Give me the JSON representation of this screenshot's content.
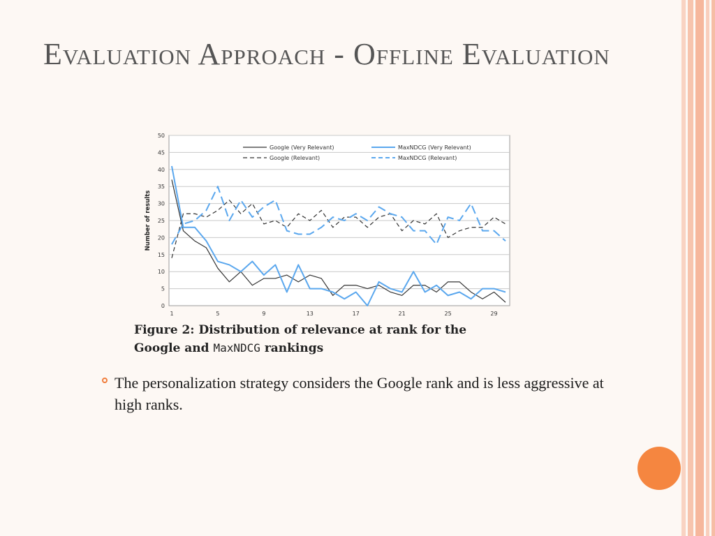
{
  "slide": {
    "title": "Evaluation Approach - Offline Evaluation",
    "bullet": "The personalization strategy considers the Google rank and is less aggressive at high ranks.",
    "caption": {
      "line1": "Figure 2:  Distribution of relevance at rank for the",
      "line2_a": "Google and ",
      "line2_mono": "MaxNDCG",
      "line2_b": " rankings"
    },
    "colors": {
      "accent": "#f58640",
      "stripe": "#f7c6b1",
      "title": "#555555"
    }
  },
  "chart_data": {
    "type": "line",
    "ylabel": "Number of results",
    "xlabel": "",
    "ylim": [
      0,
      50
    ],
    "xlim": [
      1,
      30
    ],
    "yticks": [
      0,
      5,
      10,
      15,
      20,
      25,
      30,
      35,
      40,
      45,
      50
    ],
    "xticks": [
      1,
      5,
      9,
      13,
      17,
      21,
      25,
      29
    ],
    "grid": true,
    "legend_position": "top",
    "x": [
      1,
      2,
      3,
      4,
      5,
      6,
      7,
      8,
      9,
      10,
      11,
      12,
      13,
      14,
      15,
      16,
      17,
      18,
      19,
      20,
      21,
      22,
      23,
      24,
      25,
      26,
      27,
      28,
      29,
      30
    ],
    "series": [
      {
        "name": "Google (Very Relevant)",
        "color": "#333333",
        "dash": "solid",
        "values": [
          37,
          22,
          19,
          17,
          11,
          7,
          10,
          6,
          8,
          8,
          9,
          7,
          9,
          8,
          3,
          6,
          6,
          5,
          6,
          4,
          3,
          6,
          6,
          4,
          7,
          7,
          4,
          2,
          4,
          1
        ]
      },
      {
        "name": "Google (Relevant)",
        "color": "#333333",
        "dash": "dashed",
        "values": [
          14,
          27,
          27,
          26,
          28,
          31,
          27,
          30,
          24,
          25,
          23,
          27,
          25,
          28,
          23,
          26,
          26,
          23,
          26,
          27,
          22,
          25,
          24,
          27,
          20,
          22,
          23,
          23,
          26,
          24
        ]
      },
      {
        "name": "MaxNDCG (Very Relevant)",
        "color": "#5aa7ee",
        "dash": "solid",
        "values": [
          41,
          23,
          23,
          19,
          13,
          12,
          10,
          13,
          9,
          12,
          4,
          12,
          5,
          5,
          4,
          2,
          4,
          0,
          7,
          5,
          4,
          10,
          4,
          6,
          3,
          4,
          2,
          5,
          5,
          4
        ]
      },
      {
        "name": "MaxNDCG (Relevant)",
        "color": "#5aa7ee",
        "dash": "dashed",
        "values": [
          18,
          24,
          25,
          28,
          35,
          25,
          31,
          26,
          29,
          31,
          22,
          21,
          21,
          23,
          26,
          25,
          27,
          25,
          29,
          27,
          26,
          22,
          22,
          18,
          26,
          25,
          30,
          22,
          22,
          19
        ]
      }
    ]
  }
}
